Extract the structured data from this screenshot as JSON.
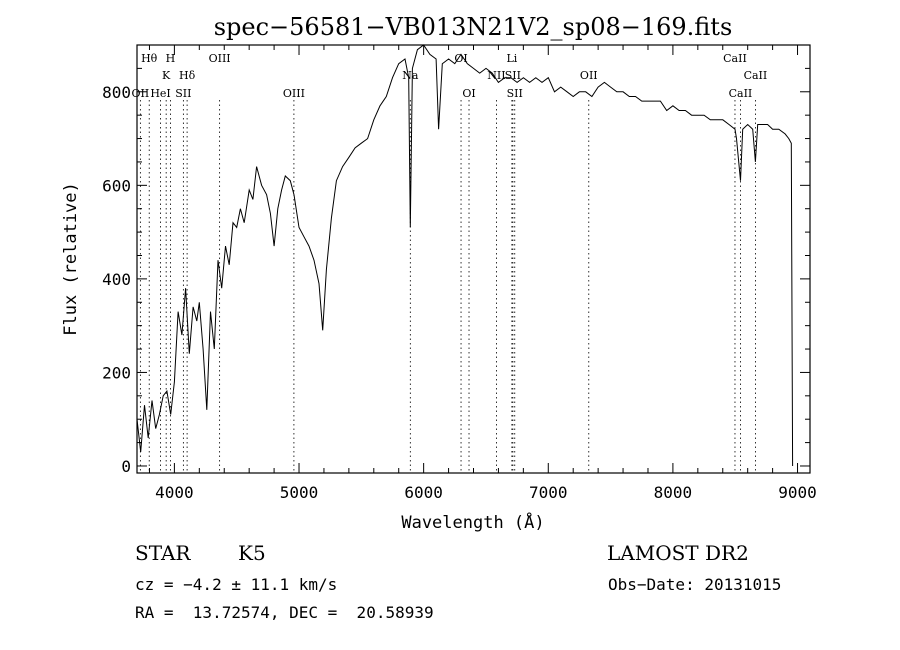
{
  "chart_data": {
    "type": "line",
    "title": "spec−56581−VB013N21V2_sp08−169.fits",
    "xlabel": "Wavelength (Å)",
    "ylabel": "Flux (relative)",
    "xlim": [
      3700,
      9100
    ],
    "ylim": [
      -15,
      900
    ],
    "x_ticks": [
      4000,
      5000,
      6000,
      7000,
      8000,
      9000
    ],
    "x_tick_labels": [
      "4000",
      "5000",
      "6000",
      "7000",
      "8000",
      "9000"
    ],
    "y_ticks": [
      0,
      200,
      400,
      600,
      800
    ],
    "y_tick_labels": [
      "0",
      "200",
      "400",
      "600",
      "800"
    ],
    "grid": false,
    "spectrum": {
      "name": "flux",
      "points": [
        [
          3700,
          100
        ],
        [
          3730,
          30
        ],
        [
          3760,
          130
        ],
        [
          3790,
          60
        ],
        [
          3820,
          140
        ],
        [
          3850,
          80
        ],
        [
          3880,
          110
        ],
        [
          3910,
          150
        ],
        [
          3940,
          160
        ],
        [
          3970,
          110
        ],
        [
          4000,
          180
        ],
        [
          4030,
          330
        ],
        [
          4060,
          280
        ],
        [
          4090,
          380
        ],
        [
          4120,
          240
        ],
        [
          4150,
          340
        ],
        [
          4180,
          310
        ],
        [
          4200,
          350
        ],
        [
          4230,
          250
        ],
        [
          4260,
          120
        ],
        [
          4290,
          330
        ],
        [
          4320,
          250
        ],
        [
          4350,
          440
        ],
        [
          4380,
          380
        ],
        [
          4410,
          470
        ],
        [
          4440,
          430
        ],
        [
          4470,
          520
        ],
        [
          4500,
          510
        ],
        [
          4530,
          550
        ],
        [
          4560,
          520
        ],
        [
          4600,
          590
        ],
        [
          4630,
          570
        ],
        [
          4660,
          640
        ],
        [
          4700,
          600
        ],
        [
          4740,
          580
        ],
        [
          4770,
          540
        ],
        [
          4800,
          470
        ],
        [
          4830,
          550
        ],
        [
          4860,
          590
        ],
        [
          4890,
          620
        ],
        [
          4930,
          610
        ],
        [
          4960,
          580
        ],
        [
          5000,
          510
        ],
        [
          5040,
          490
        ],
        [
          5080,
          470
        ],
        [
          5120,
          440
        ],
        [
          5160,
          390
        ],
        [
          5190,
          290
        ],
        [
          5220,
          420
        ],
        [
          5260,
          530
        ],
        [
          5300,
          610
        ],
        [
          5350,
          640
        ],
        [
          5400,
          660
        ],
        [
          5450,
          680
        ],
        [
          5500,
          690
        ],
        [
          5550,
          700
        ],
        [
          5600,
          740
        ],
        [
          5650,
          770
        ],
        [
          5700,
          790
        ],
        [
          5750,
          830
        ],
        [
          5800,
          860
        ],
        [
          5850,
          870
        ],
        [
          5880,
          830
        ],
        [
          5893,
          510
        ],
        [
          5910,
          850
        ],
        [
          5950,
          890
        ],
        [
          6000,
          900
        ],
        [
          6050,
          880
        ],
        [
          6100,
          870
        ],
        [
          6120,
          720
        ],
        [
          6150,
          860
        ],
        [
          6200,
          870
        ],
        [
          6250,
          860
        ],
        [
          6300,
          880
        ],
        [
          6350,
          860
        ],
        [
          6400,
          850
        ],
        [
          6450,
          840
        ],
        [
          6500,
          850
        ],
        [
          6550,
          840
        ],
        [
          6600,
          820
        ],
        [
          6650,
          830
        ],
        [
          6700,
          830
        ],
        [
          6750,
          820
        ],
        [
          6800,
          830
        ],
        [
          6850,
          820
        ],
        [
          6900,
          830
        ],
        [
          6950,
          820
        ],
        [
          7000,
          830
        ],
        [
          7050,
          800
        ],
        [
          7100,
          810
        ],
        [
          7150,
          800
        ],
        [
          7200,
          790
        ],
        [
          7250,
          800
        ],
        [
          7300,
          800
        ],
        [
          7350,
          790
        ],
        [
          7400,
          810
        ],
        [
          7450,
          820
        ],
        [
          7500,
          810
        ],
        [
          7550,
          800
        ],
        [
          7600,
          800
        ],
        [
          7650,
          790
        ],
        [
          7700,
          790
        ],
        [
          7750,
          780
        ],
        [
          7800,
          780
        ],
        [
          7850,
          780
        ],
        [
          7900,
          780
        ],
        [
          7950,
          760
        ],
        [
          8000,
          770
        ],
        [
          8050,
          760
        ],
        [
          8100,
          760
        ],
        [
          8150,
          750
        ],
        [
          8200,
          750
        ],
        [
          8250,
          750
        ],
        [
          8300,
          740
        ],
        [
          8350,
          740
        ],
        [
          8400,
          740
        ],
        [
          8450,
          730
        ],
        [
          8498,
          720
        ],
        [
          8510,
          700
        ],
        [
          8542,
          610
        ],
        [
          8560,
          720
        ],
        [
          8600,
          730
        ],
        [
          8640,
          720
        ],
        [
          8662,
          650
        ],
        [
          8680,
          730
        ],
        [
          8720,
          730
        ],
        [
          8760,
          730
        ],
        [
          8800,
          720
        ],
        [
          8850,
          720
        ],
        [
          8900,
          710
        ],
        [
          8930,
          700
        ],
        [
          8950,
          690
        ],
        [
          8960,
          0
        ]
      ]
    },
    "line_markers": [
      {
        "label": "Hθ",
        "wavelength": 3798,
        "row": 1
      },
      {
        "label": "OII",
        "wavelength": 3727,
        "row": 3
      },
      {
        "label": "H",
        "wavelength": 3968,
        "row": 1
      },
      {
        "label": "K",
        "wavelength": 3934,
        "row": 2
      },
      {
        "label": "HeI",
        "wavelength": 3889,
        "row": 3
      },
      {
        "label": "Hδ",
        "wavelength": 4102,
        "row": 2
      },
      {
        "label": "SII",
        "wavelength": 4072,
        "row": 3
      },
      {
        "label": "OIII",
        "wavelength": 4363,
        "row": 1
      },
      {
        "label": "OIII",
        "wavelength": 4959,
        "row": 3
      },
      {
        "label": "Na",
        "wavelength": 5893,
        "row": 2
      },
      {
        "label": "OI",
        "wavelength": 6300,
        "row": 1
      },
      {
        "label": "OI",
        "wavelength": 6364,
        "row": 3
      },
      {
        "label": "Li",
        "wavelength": 6708,
        "row": 1
      },
      {
        "label": "NII",
        "wavelength": 6584,
        "row": 2
      },
      {
        "label": "SII",
        "wavelength": 6716,
        "row": 2
      },
      {
        "label": "SII",
        "wavelength": 6731,
        "row": 3
      },
      {
        "label": "OII",
        "wavelength": 7325,
        "row": 2
      },
      {
        "label": "CaII",
        "wavelength": 8498,
        "row": 1
      },
      {
        "label": "CaII",
        "wavelength": 8662,
        "row": 2
      },
      {
        "label": "CaII",
        "wavelength": 8542,
        "row": 3
      }
    ]
  },
  "info": {
    "object_class": "STAR",
    "subclass": "K5",
    "survey": "LAMOST DR2",
    "cz": "cz = −4.2 ± 11.1 km/s",
    "obs_date": "Obs−Date: 20131015",
    "coords": "RA =  13.72574, DEC =  20.58939"
  }
}
